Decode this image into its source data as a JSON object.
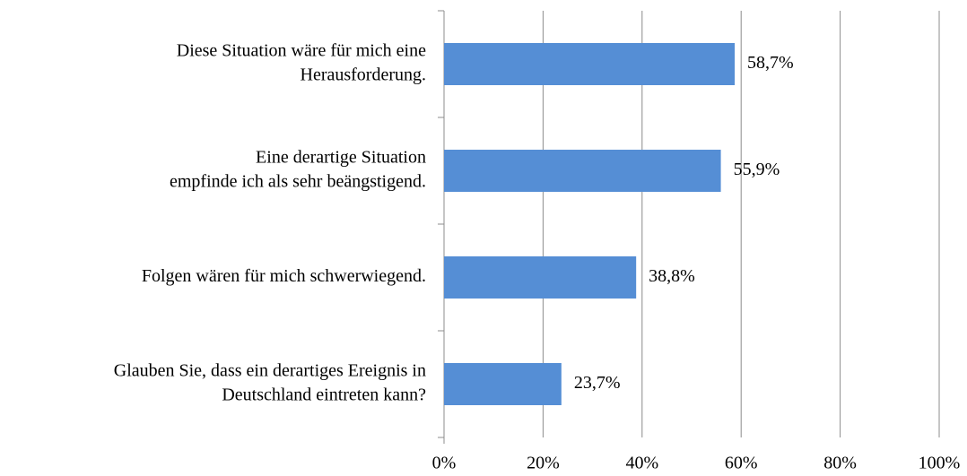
{
  "chart_data": {
    "type": "barh",
    "categories": [
      [
        "Diese Situation wäre für mich eine",
        "Herausforderung."
      ],
      [
        "Eine derartige Situation",
        "empfinde ich als sehr beängstigend."
      ],
      [
        "Folgen wären für mich schwerwiegend."
      ],
      [
        "Glauben Sie, dass ein derartiges Ereignis in",
        "Deutschland eintreten kann?"
      ]
    ],
    "values": [
      58.7,
      55.9,
      38.8,
      23.7
    ],
    "value_labels": [
      "58,7%",
      "55,9%",
      "38,8%",
      "23,7%"
    ],
    "color": "#558ed5",
    "xlim": [
      0,
      100
    ],
    "xticks": [
      {
        "value": 0,
        "label": "0%"
      },
      {
        "value": 20,
        "label": "20%"
      },
      {
        "value": 40,
        "label": "40%"
      },
      {
        "value": 60,
        "label": "60%"
      },
      {
        "value": 80,
        "label": "80%"
      },
      {
        "value": 100,
        "label": "100%"
      }
    ],
    "grid": true
  }
}
